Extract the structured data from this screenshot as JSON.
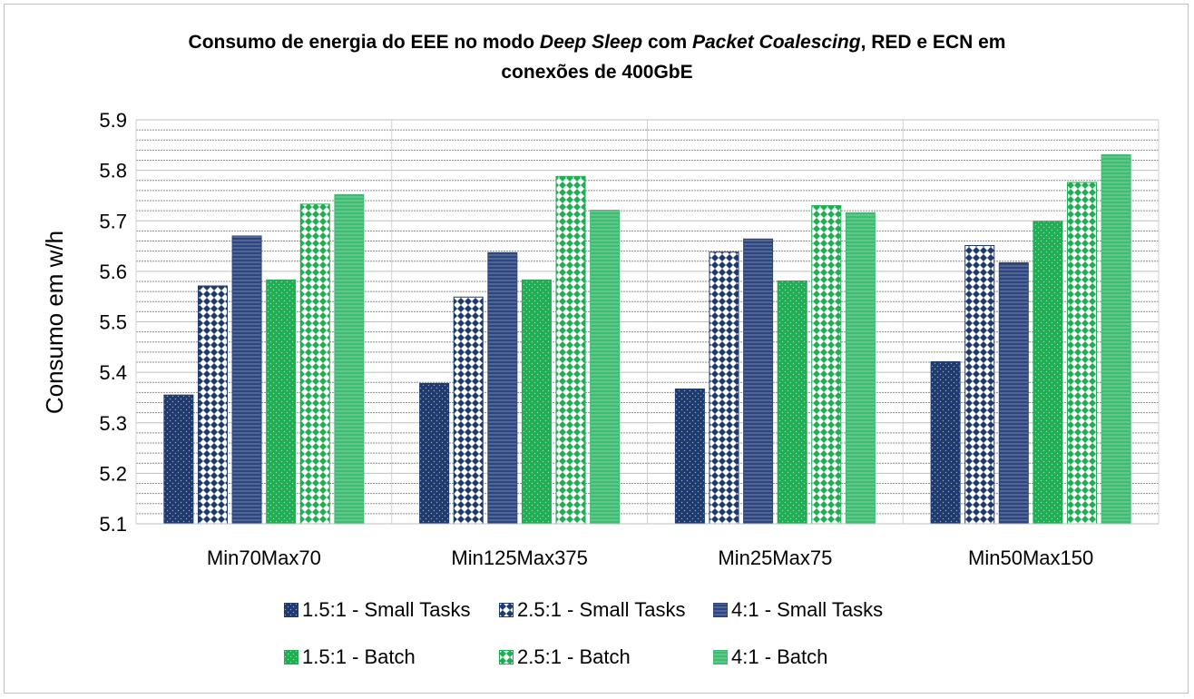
{
  "chart_data": {
    "type": "bar",
    "title": {
      "part1": "Consumo de energia do EEE no modo ",
      "italic1": "Deep Sleep",
      "part2": " com ",
      "italic2": "Packet Coalescing",
      "part3": ", RED e ECN em",
      "line2": "conexões de 400GbE"
    },
    "xlabel": "",
    "ylabel": "Consumo em w/h",
    "ylim": [
      5.1,
      5.9
    ],
    "yticks": [
      "5.1",
      "5.2",
      "5.3",
      "5.4",
      "5.5",
      "5.6",
      "5.7",
      "5.8",
      "5.9"
    ],
    "grid": "minor-dashed",
    "categories": [
      "Min70Max70",
      "Min125Max375",
      "Min25Max75",
      "Min50Max150"
    ],
    "series": [
      {
        "name": "1.5:1 - Small Tasks",
        "color": "#1f3a6e",
        "pattern": "dots",
        "values": [
          5.355,
          5.378,
          5.367,
          5.421
        ]
      },
      {
        "name": "2.5:1 - Small Tasks",
        "color": "#1f3a6e",
        "pattern": "checker",
        "values": [
          5.571,
          5.549,
          5.638,
          5.651
        ]
      },
      {
        "name": "4:1 - Small Tasks",
        "color": "#2e4680",
        "pattern": "hatch",
        "values": [
          5.67,
          5.637,
          5.664,
          5.617
        ]
      },
      {
        "name": "1.5:1 - Batch",
        "color": "#1fae54",
        "pattern": "dots",
        "values": [
          5.583,
          5.583,
          5.581,
          5.699
        ]
      },
      {
        "name": "2.5:1 - Batch",
        "color": "#1fae54",
        "pattern": "checker",
        "values": [
          5.733,
          5.788,
          5.73,
          5.776
        ]
      },
      {
        "name": "4:1 - Batch",
        "color": "#3fbb72",
        "pattern": "hatch",
        "values": [
          5.752,
          5.721,
          5.716,
          5.831
        ]
      }
    ],
    "legend_position": "bottom"
  }
}
